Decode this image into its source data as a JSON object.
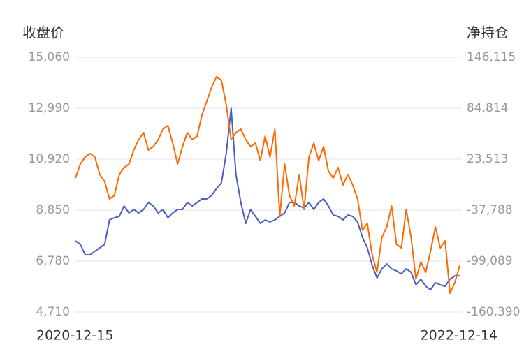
{
  "chart_data": {
    "type": "line",
    "y_label": "收盘价",
    "y2_label": "净持仓",
    "categories": [
      "2020-12-15",
      null,
      null,
      null,
      null,
      null,
      null,
      null,
      null,
      null,
      null,
      null,
      null,
      null,
      null,
      null,
      null,
      null,
      null,
      null,
      null,
      null,
      null,
      null,
      null,
      null,
      null,
      null,
      null,
      null,
      null,
      null,
      null,
      null,
      null,
      null,
      null,
      null,
      null,
      null,
      null,
      null,
      null,
      null,
      null,
      null,
      null,
      null,
      null,
      null,
      null,
      null,
      null,
      null,
      null,
      null,
      null,
      null,
      null,
      null,
      null,
      null,
      null,
      null,
      null,
      null,
      null,
      null,
      null,
      null,
      null,
      null,
      null,
      null,
      null,
      null,
      null,
      null,
      null,
      "2022-12-14"
    ],
    "ylim": [
      4710,
      15060
    ],
    "yticks": [
      {
        "value": 4710,
        "label": "4,710"
      },
      {
        "value": 6780,
        "label": "6,780"
      },
      {
        "value": 8850,
        "label": "8,850"
      },
      {
        "value": 10920,
        "label": "10,920"
      },
      {
        "value": 12990,
        "label": "12,990"
      },
      {
        "value": 15060,
        "label": "15,060"
      }
    ],
    "y2lim": [
      -160390,
      146115
    ],
    "y2ticks": [
      {
        "value": -160390,
        "label": "-160,390"
      },
      {
        "value": -99089,
        "label": "-99,089"
      },
      {
        "value": -37788,
        "label": "-37,788"
      },
      {
        "value": 23513,
        "label": "23,513"
      },
      {
        "value": 84814,
        "label": "84,814"
      },
      {
        "value": 146115,
        "label": "146,115"
      }
    ],
    "grid": true,
    "series": [
      {
        "color": "#4a5fc1",
        "axis": "y",
        "values": [
          7600,
          7460,
          7034,
          7034,
          7176,
          7318,
          7460,
          8452,
          8537,
          8594,
          9019,
          8736,
          8878,
          8736,
          8878,
          9161,
          9019,
          8736,
          8878,
          8537,
          8736,
          8878,
          8878,
          9161,
          9019,
          9161,
          9303,
          9303,
          9445,
          9728,
          9955,
          11146,
          12990,
          10296,
          9161,
          8310,
          8878,
          8594,
          8310,
          8452,
          8367,
          8452,
          8594,
          8736,
          9161,
          9161,
          9019,
          8934,
          9161,
          8878,
          9161,
          9303,
          9019,
          8651,
          8594,
          8452,
          8651,
          8594,
          8367,
          7743,
          7318,
          6609,
          6098,
          6467,
          6665,
          6467,
          6382,
          6268,
          6467,
          6325,
          5815,
          6042,
          5758,
          5616,
          5900,
          5815,
          5758,
          6042,
          6183,
          6183
        ]
      },
      {
        "color": "#ff6a00",
        "axis": "y2",
        "values": [
          847,
          17641,
          26038,
          30236,
          26038,
          5045,
          -3352,
          -24344,
          -20146,
          5045,
          13442,
          17641,
          34435,
          47030,
          55427,
          34435,
          38633,
          47030,
          59626,
          63824,
          42832,
          17641,
          38633,
          55427,
          47030,
          51229,
          76420,
          93214,
          110008,
          122603,
          118405,
          89015,
          47030,
          55427,
          59626,
          47030,
          38633,
          42832,
          21839,
          51229,
          26038,
          59626,
          -45337,
          17641,
          -20146,
          -32741,
          5045,
          -36940,
          26038,
          42832,
          21839,
          38633,
          9244,
          847,
          13442,
          -7550,
          5045,
          -7550,
          -24344,
          -62131,
          -53734,
          -91520,
          -112513,
          -70528,
          -57932,
          -32741,
          -78925,
          -83123,
          -36940,
          -70528,
          -120910,
          -99917,
          -112513,
          -87322,
          -57932,
          -83123,
          -74726,
          -137704,
          -125108,
          -104116
        ]
      }
    ]
  }
}
